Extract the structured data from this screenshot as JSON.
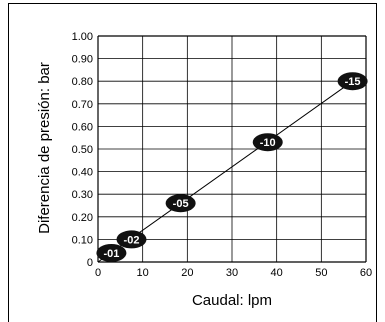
{
  "chart_data": {
    "type": "line",
    "xlabel": "Caudal: lpm",
    "ylabel": "Diferencia de presión: bar",
    "xlim": [
      0,
      60
    ],
    "ylim": [
      0,
      1.0
    ],
    "x_ticks": [
      "0",
      "10",
      "20",
      "30",
      "40",
      "50",
      "60"
    ],
    "y_ticks": [
      "0",
      "0.10",
      "0.20",
      "0.30",
      "0.40",
      "0.50",
      "0.60",
      "0.70",
      "0.80",
      "0.90",
      "1.00"
    ],
    "grid": true,
    "line": {
      "x": [
        0,
        57
      ],
      "y": [
        0.0,
        0.8
      ]
    },
    "points": [
      {
        "label": "-01",
        "x": 3,
        "y": 0.04
      },
      {
        "label": "-02",
        "x": 7.5,
        "y": 0.1
      },
      {
        "label": "-05",
        "x": 18.5,
        "y": 0.26
      },
      {
        "label": "-10",
        "x": 38,
        "y": 0.53
      },
      {
        "label": "-15",
        "x": 57,
        "y": 0.8
      }
    ],
    "colors": {
      "marker": "#111111",
      "line": "#000000",
      "grid": "#000000"
    }
  }
}
